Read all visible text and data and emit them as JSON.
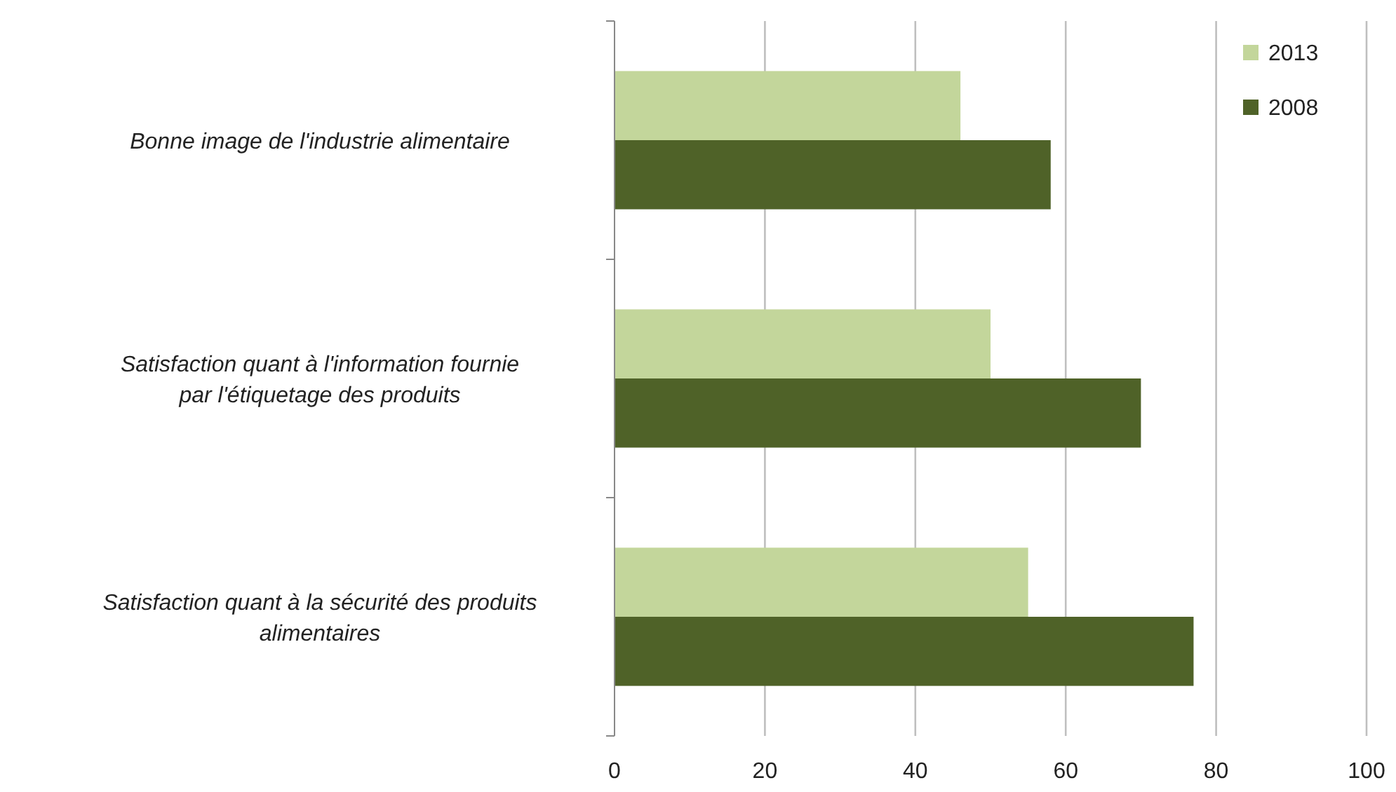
{
  "chart_data": {
    "type": "bar",
    "orientation": "horizontal",
    "categories": [
      "Bonne image de l'industrie alimentaire",
      "Satisfaction quant à l'information fournie par l'étiquetage des produits",
      "Satisfaction quant à la sécurité des produits alimentaires"
    ],
    "series": [
      {
        "name": "2013",
        "color": "#c3d69b",
        "values": [
          46,
          50,
          55
        ]
      },
      {
        "name": "2008",
        "color": "#4f6228",
        "values": [
          58,
          70,
          77
        ]
      }
    ],
    "xlim": [
      0,
      100
    ],
    "xticks": [
      0,
      20,
      40,
      60,
      80,
      100
    ],
    "grid": "x",
    "legend": "top right"
  }
}
